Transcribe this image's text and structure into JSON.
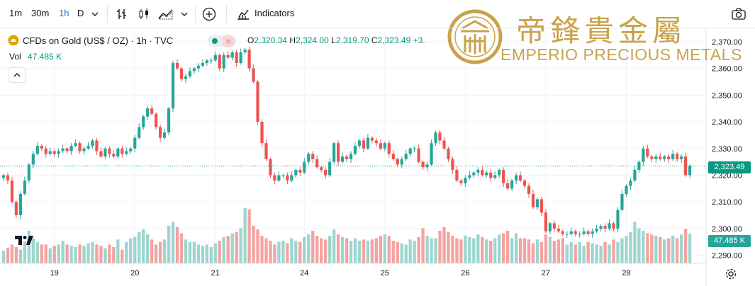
{
  "toolbar": {
    "intervals": [
      "1m",
      "30m",
      "1h",
      "D"
    ],
    "active_interval": "1h",
    "indicators_label": "Indicators"
  },
  "legend": {
    "symbol": "CFDs on Gold (US$ / OZ) · 1h · TVC",
    "open_label": "O",
    "open": "2,320.34",
    "high_label": "H",
    "high": "2,324.00",
    "low_label": "L",
    "low": "2,319.70",
    "close_label": "C",
    "close": "2,323.49",
    "change": "+3.",
    "vol_label": "Vol",
    "vol_value": "47.485 K"
  },
  "logo": {
    "title_zh": "帝鋒貴金屬",
    "title_en": "EMPERIO PRECIOUS METALS",
    "monogram": "帝"
  },
  "colors": {
    "up": "#26a69a",
    "down": "#ef5350",
    "vol_up": "#9cd6cf",
    "vol_down": "#f5a3a1",
    "gold": "#c9a24b",
    "last_price": "#089981",
    "grid": "#f0f3fa"
  },
  "chart_data": {
    "type": "candlestick",
    "symbol": "CFDs on Gold (US$ / OZ)",
    "interval": "1h",
    "source": "TVC",
    "ylim": [
      2287,
      2375
    ],
    "y_ticks": [
      "2,370.00",
      "2,360.00",
      "2,350.00",
      "2,340.00",
      "2,330.00",
      "2,320.00",
      "2,310.00",
      "2,300.00",
      "2,290.00"
    ],
    "y_tick_values": [
      2370,
      2360,
      2350,
      2340,
      2330,
      2320,
      2310,
      2300,
      2290
    ],
    "x_ticks": [
      "19",
      "20",
      "21",
      "24",
      "25",
      "26",
      "27",
      "28"
    ],
    "x_tick_index": [
      12,
      31,
      50,
      71,
      90,
      109,
      128,
      147
    ],
    "last_price": 2323.49,
    "last_price_label": "2,323.49",
    "last_volume_label": "47.485 K",
    "closes": [
      2320,
      2318,
      2310,
      2305,
      2313,
      2318,
      2324,
      2328,
      2331,
      2330,
      2328,
      2329,
      2328,
      2329,
      2330,
      2329,
      2331,
      2332,
      2329,
      2330,
      2331,
      2333,
      2329,
      2327,
      2330,
      2328,
      2327,
      2330,
      2328,
      2329,
      2330,
      2334,
      2338,
      2342,
      2345,
      2343,
      2338,
      2334,
      2336,
      2345,
      2362,
      2360,
      2356,
      2357,
      2359,
      2360,
      2361,
      2362,
      2363,
      2363,
      2365,
      2360,
      2365,
      2364,
      2366,
      2362,
      2366,
      2367,
      2360,
      2355,
      2340,
      2332,
      2326,
      2320,
      2318,
      2320,
      2320,
      2318,
      2320,
      2322,
      2321,
      2325,
      2328,
      2326,
      2323,
      2322,
      2320,
      2325,
      2332,
      2325,
      2327,
      2326,
      2328,
      2331,
      2333,
      2330,
      2334,
      2333,
      2332,
      2330,
      2332,
      2328,
      2326,
      2324,
      2326,
      2328,
      2330,
      2330,
      2325,
      2323,
      2324,
      2332,
      2336,
      2333,
      2330,
      2326,
      2322,
      2318,
      2317,
      2319,
      2320,
      2321,
      2322,
      2320,
      2321,
      2319,
      2320,
      2322,
      2317,
      2315,
      2318,
      2320,
      2318,
      2316,
      2313,
      2308,
      2311,
      2306,
      2299,
      2302,
      2300,
      2299,
      2298,
      2298,
      2299,
      2298,
      2298,
      2299,
      2298,
      2299,
      2300,
      2301,
      2300,
      2302,
      2300,
      2307,
      2313,
      2316,
      2318,
      2322,
      2325,
      2330,
      2327,
      2326,
      2327,
      2326,
      2327,
      2326,
      2328,
      2326,
      2327,
      2320,
      2323.49
    ],
    "volumes_k": [
      20,
      25,
      30,
      26,
      22,
      35,
      52,
      40,
      34,
      30,
      30,
      24,
      28,
      30,
      36,
      30,
      28,
      26,
      30,
      28,
      32,
      34,
      30,
      28,
      24,
      30,
      26,
      38,
      22,
      34,
      40,
      42,
      50,
      54,
      46,
      38,
      30,
      34,
      38,
      60,
      66,
      58,
      48,
      38,
      34,
      34,
      30,
      28,
      30,
      26,
      32,
      36,
      42,
      44,
      48,
      50,
      56,
      88,
      86,
      60,
      54,
      44,
      40,
      36,
      30,
      34,
      36,
      32,
      40,
      36,
      34,
      42,
      46,
      52,
      44,
      40,
      38,
      44,
      54,
      46,
      42,
      40,
      36,
      40,
      36,
      38,
      36,
      38,
      40,
      44,
      46,
      44,
      36,
      34,
      32,
      30,
      38,
      36,
      42,
      56,
      44,
      40,
      40,
      52,
      58,
      50,
      44,
      40,
      38,
      44,
      42,
      40,
      46,
      42,
      38,
      36,
      40,
      46,
      48,
      52,
      40,
      48,
      40,
      40,
      38,
      32,
      38,
      34,
      46,
      42,
      36,
      38,
      40,
      30,
      34,
      30,
      34,
      28,
      34,
      32,
      30,
      28,
      34,
      30,
      38,
      34,
      40,
      44,
      50,
      66,
      56,
      52,
      48,
      46,
      44,
      42,
      38,
      40,
      44,
      40,
      46,
      55,
      47.485
    ]
  }
}
